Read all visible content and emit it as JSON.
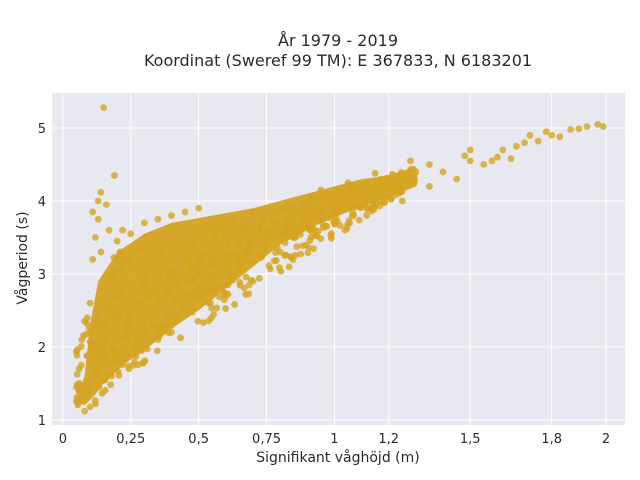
{
  "chart_data": {
    "type": "scatter",
    "title_line1": "År 1979 - 2019",
    "title_line2": "Koordinat (Sweref 99 TM): E 367833, N 6183201",
    "xlabel": "Signifikant våghöjd (m)",
    "ylabel": "Vågperiod (s)",
    "xlim": [
      -0.04,
      2.07
    ],
    "ylim": [
      0.93,
      5.48
    ],
    "x_ticks": [
      0,
      0.25,
      0.5,
      0.75,
      1,
      1.2,
      1.5,
      1.8,
      2
    ],
    "x_tick_labels": [
      "0",
      "0,25",
      "0,5",
      "0,75",
      "1",
      "1,2",
      "1,5",
      "1,8",
      "2"
    ],
    "y_ticks": [
      1,
      2,
      3,
      4,
      5
    ],
    "y_tick_labels": [
      "1",
      "2",
      "3",
      "4",
      "5"
    ],
    "grid": true,
    "colors": {
      "marker": "#d4a420",
      "plot_bg": "#e8e8f0",
      "grid": "#ffffff"
    },
    "points": [
      [
        0.15,
        5.28
      ],
      [
        0.19,
        4.35
      ],
      [
        0.14,
        4.12
      ],
      [
        0.13,
        4.0
      ],
      [
        0.16,
        3.95
      ],
      [
        0.11,
        3.85
      ],
      [
        0.13,
        3.75
      ],
      [
        0.17,
        3.6
      ],
      [
        0.12,
        3.5
      ],
      [
        0.2,
        3.45
      ],
      [
        0.14,
        3.3
      ],
      [
        0.21,
        3.3
      ],
      [
        0.11,
        3.2
      ],
      [
        0.1,
        2.6
      ],
      [
        0.09,
        2.4
      ],
      [
        0.08,
        2.35
      ],
      [
        0.1,
        2.2
      ],
      [
        0.07,
        2.1
      ],
      [
        0.06,
        1.7
      ],
      [
        0.05,
        1.45
      ],
      [
        0.05,
        1.25
      ],
      [
        0.06,
        1.5
      ],
      [
        0.08,
        1.12
      ],
      [
        0.1,
        1.18
      ],
      [
        0.12,
        1.22
      ],
      [
        0.15,
        1.55
      ],
      [
        0.18,
        1.6
      ],
      [
        0.22,
        1.8
      ],
      [
        0.26,
        1.75
      ],
      [
        0.3,
        2.0
      ],
      [
        0.35,
        2.1
      ],
      [
        0.4,
        2.2
      ],
      [
        0.22,
        3.6
      ],
      [
        0.25,
        3.55
      ],
      [
        0.3,
        3.7
      ],
      [
        0.35,
        3.75
      ],
      [
        0.4,
        3.8
      ],
      [
        0.45,
        3.85
      ],
      [
        0.5,
        3.9
      ],
      [
        0.55,
        3.65
      ],
      [
        0.6,
        3.7
      ],
      [
        0.7,
        3.85
      ],
      [
        0.6,
        2.7
      ],
      [
        0.7,
        2.9
      ],
      [
        0.8,
        3.3
      ],
      [
        0.85,
        3.5
      ],
      [
        0.9,
        4.0
      ],
      [
        1.0,
        4.1
      ],
      [
        1.1,
        4.2
      ],
      [
        1.2,
        4.25
      ],
      [
        1.3,
        4.4
      ],
      [
        1.35,
        4.5
      ],
      [
        1.4,
        4.4
      ],
      [
        1.45,
        4.3
      ],
      [
        1.5,
        4.55
      ],
      [
        1.55,
        4.5
      ],
      [
        1.6,
        4.6
      ],
      [
        1.62,
        4.7
      ],
      [
        1.67,
        4.75
      ],
      [
        1.7,
        4.8
      ],
      [
        1.72,
        4.9
      ],
      [
        1.75,
        4.82
      ],
      [
        1.78,
        4.95
      ],
      [
        1.8,
        4.9
      ],
      [
        1.83,
        4.88
      ],
      [
        1.87,
        4.98
      ],
      [
        1.9,
        4.99
      ],
      [
        1.93,
        5.02
      ],
      [
        1.97,
        5.05
      ],
      [
        1.99,
        5.02
      ],
      [
        1.5,
        4.7
      ],
      [
        1.48,
        4.62
      ],
      [
        1.58,
        4.55
      ],
      [
        1.65,
        4.58
      ],
      [
        1.28,
        4.55
      ],
      [
        1.22,
        4.35
      ],
      [
        1.15,
        4.38
      ],
      [
        1.05,
        4.25
      ],
      [
        0.95,
        4.15
      ],
      [
        1.12,
        3.9
      ],
      [
        1.25,
        4.0
      ],
      [
        1.35,
        4.2
      ],
      [
        0.65,
        3.4
      ],
      [
        0.55,
        3.1
      ],
      [
        0.48,
        2.9
      ],
      [
        0.45,
        2.6
      ],
      [
        0.38,
        2.4
      ],
      [
        0.33,
        2.3
      ],
      [
        0.28,
        2.1
      ],
      [
        0.24,
        1.9
      ]
    ]
  }
}
